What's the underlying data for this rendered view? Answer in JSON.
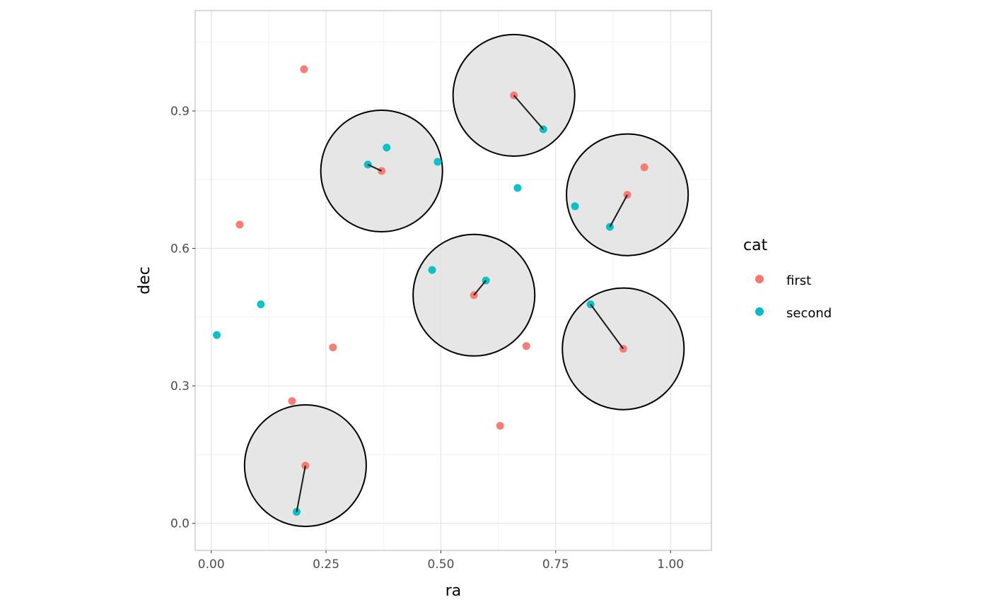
{
  "chart_data": {
    "type": "scatter",
    "title": "",
    "xlabel": "ra",
    "ylabel": "dec",
    "xlim": [
      -0.035,
      1.089
    ],
    "ylim": [
      -0.059,
      1.119
    ],
    "xticks": [
      0,
      0.25,
      0.5,
      0.75,
      1.0
    ],
    "xtick_labels": [
      "0.00",
      "0.25",
      "0.50",
      "0.75",
      "1.00"
    ],
    "yticks": [
      0,
      0.3,
      0.6,
      0.9
    ],
    "ytick_labels": [
      "0.0",
      "0.3",
      "0.6",
      "0.9"
    ],
    "grid": true,
    "legend": {
      "title": "cat",
      "placement": "right"
    },
    "series": [
      {
        "name": "first",
        "color": "#F8766D",
        "points": [
          [
            0.202,
            0.991
          ],
          [
            0.062,
            0.652
          ],
          [
            0.265,
            0.384
          ],
          [
            0.176,
            0.267
          ],
          [
            0.205,
            0.126
          ],
          [
            0.371,
            0.769
          ],
          [
            0.659,
            0.934
          ],
          [
            0.572,
            0.498
          ],
          [
            0.686,
            0.387
          ],
          [
            0.629,
            0.213
          ],
          [
            0.906,
            0.717
          ],
          [
            0.943,
            0.777
          ],
          [
            0.897,
            0.381
          ]
        ]
      },
      {
        "name": "second",
        "color": "#00BFC4",
        "points": [
          [
            0.012,
            0.411
          ],
          [
            0.108,
            0.478
          ],
          [
            0.186,
            0.025
          ],
          [
            0.341,
            0.783
          ],
          [
            0.382,
            0.82
          ],
          [
            0.493,
            0.789
          ],
          [
            0.481,
            0.553
          ],
          [
            0.598,
            0.53
          ],
          [
            0.667,
            0.732
          ],
          [
            0.723,
            0.86
          ],
          [
            0.792,
            0.692
          ],
          [
            0.868,
            0.647
          ],
          [
            0.826,
            0.478
          ]
        ]
      }
    ],
    "circles": {
      "radius": 0.1325,
      "fill": "#e3e3e3",
      "stroke": "#000000",
      "centers": [
        [
          0.205,
          0.126
        ],
        [
          0.371,
          0.769
        ],
        [
          0.659,
          0.934
        ],
        [
          0.572,
          0.498
        ],
        [
          0.906,
          0.717
        ],
        [
          0.897,
          0.381
        ]
      ]
    },
    "segments": [
      [
        [
          0.205,
          0.126
        ],
        [
          0.186,
          0.025
        ]
      ],
      [
        [
          0.371,
          0.769
        ],
        [
          0.341,
          0.783
        ]
      ],
      [
        [
          0.659,
          0.934
        ],
        [
          0.723,
          0.86
        ]
      ],
      [
        [
          0.572,
          0.498
        ],
        [
          0.598,
          0.53
        ]
      ],
      [
        [
          0.906,
          0.717
        ],
        [
          0.868,
          0.647
        ]
      ],
      [
        [
          0.897,
          0.381
        ],
        [
          0.826,
          0.478
        ]
      ]
    ]
  }
}
